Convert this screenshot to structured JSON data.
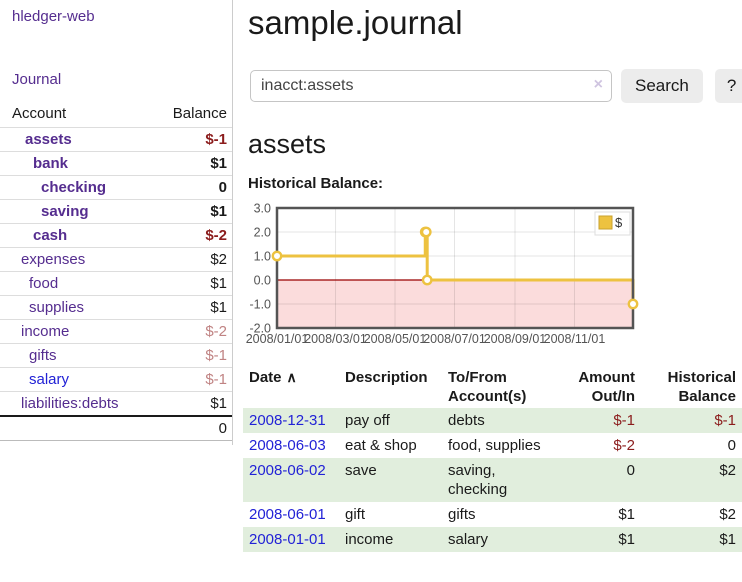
{
  "sidebar": {
    "brand": "hledger-web",
    "journal_link": "Journal",
    "accounts": {
      "headers": {
        "account": "Account",
        "balance": "Balance"
      },
      "rows": [
        {
          "name": "assets",
          "depth": 0,
          "bold": true,
          "balance": "$-1",
          "neg": "strong",
          "link_color": "purple"
        },
        {
          "name": "bank",
          "depth": 1,
          "bold": true,
          "balance": "$1",
          "neg": "",
          "link_color": "purple"
        },
        {
          "name": "checking",
          "depth": 2,
          "bold": true,
          "balance": "0",
          "neg": "",
          "link_color": "purple"
        },
        {
          "name": "saving",
          "depth": 2,
          "bold": true,
          "balance": "$1",
          "neg": "",
          "link_color": "purple"
        },
        {
          "name": "cash",
          "depth": 1,
          "bold": true,
          "balance": "$-2",
          "neg": "strong",
          "link_color": "purple"
        },
        {
          "name": "expenses",
          "depth": 0,
          "bold": false,
          "balance": "$2",
          "neg": "",
          "link_color": "purple"
        },
        {
          "name": "food",
          "depth": 1,
          "bold": false,
          "balance": "$1",
          "neg": "",
          "link_color": "purple"
        },
        {
          "name": "supplies",
          "depth": 1,
          "bold": false,
          "balance": "$1",
          "neg": "",
          "link_color": "purple"
        },
        {
          "name": "income",
          "depth": 0,
          "bold": false,
          "balance": "$-2",
          "neg": "soft",
          "link_color": "purple"
        },
        {
          "name": "gifts",
          "depth": 1,
          "bold": false,
          "balance": "$-1",
          "neg": "soft",
          "link_color": "purple"
        },
        {
          "name": "salary",
          "depth": 1,
          "bold": false,
          "balance": "$-1",
          "neg": "soft",
          "link_color": "blue"
        },
        {
          "name": "liabilities:debts",
          "depth": 0,
          "bold": false,
          "balance": "$1",
          "neg": "",
          "link_color": "purple"
        }
      ],
      "total": "0"
    }
  },
  "main": {
    "title": "sample.journal",
    "search": {
      "value": "inacct:assets",
      "clear_label": "×",
      "button_label": "Search",
      "help_label": "?"
    },
    "heading": "assets",
    "chart_title": "Historical Balance:"
  },
  "chart_data": {
    "type": "line",
    "step": true,
    "title": "Historical Balance",
    "series": [
      {
        "name": "$",
        "color": "#edc240",
        "points": [
          {
            "date": "2008-01-01",
            "day": 0,
            "value": 1
          },
          {
            "date": "2008-06-01",
            "day": 152,
            "value": 2
          },
          {
            "date": "2008-06-02",
            "day": 153,
            "value": 2
          },
          {
            "date": "2008-06-03",
            "day": 154,
            "value": 0
          },
          {
            "date": "2008-12-31",
            "day": 365,
            "value": -1
          }
        ]
      }
    ],
    "xlim_days": [
      0,
      365
    ],
    "ylim": [
      -2,
      3
    ],
    "yticks": [
      "3.0",
      "2.0",
      "1.0",
      "0.0",
      "-1.0",
      "-2.0"
    ],
    "ytick_values": [
      3,
      2,
      1,
      0,
      -1,
      -2
    ],
    "xticks": [
      {
        "label": "2008/01/01",
        "day": 0
      },
      {
        "label": "2008/03/01",
        "day": 60
      },
      {
        "label": "2008/05/01",
        "day": 121
      },
      {
        "label": "2008/07/01",
        "day": 182
      },
      {
        "label": "2008/09/01",
        "day": 244
      },
      {
        "label": "2008/11/01",
        "day": 305
      }
    ],
    "legend": {
      "label": "$",
      "position": "top-right"
    },
    "colors": {
      "line": "#edc240",
      "marker_fill": "#ffffff",
      "negative_region": "#fbdcdc",
      "zero_line": "#990000",
      "grid": "rgba(0,0,0,0.10)",
      "border": "#545454",
      "tick_text": "#545454"
    }
  },
  "register": {
    "headers": {
      "date": "Date",
      "sort_icon": "∧",
      "description": "Description",
      "accounts": "To/From Account(s)",
      "amount": "Amount Out/In",
      "balance": "Historical Balance"
    },
    "rows": [
      {
        "date": "2008-12-31",
        "description": "pay off",
        "accounts": "debts",
        "amount": "$-1",
        "amount_neg": true,
        "balance": "$-1",
        "balance_neg": true
      },
      {
        "date": "2008-06-03",
        "description": "eat & shop",
        "accounts": "food, supplies",
        "amount": "$-2",
        "amount_neg": true,
        "balance": "0",
        "balance_neg": false
      },
      {
        "date": "2008-06-02",
        "description": "save",
        "accounts": "saving, checking",
        "amount": "0",
        "amount_neg": false,
        "balance": "$2",
        "balance_neg": false
      },
      {
        "date": "2008-06-01",
        "description": "gift",
        "accounts": "gifts",
        "amount": "$1",
        "amount_neg": false,
        "balance": "$2",
        "balance_neg": false
      },
      {
        "date": "2008-01-01",
        "description": "income",
        "accounts": "salary",
        "amount": "$1",
        "amount_neg": false,
        "balance": "$1",
        "balance_neg": false
      }
    ]
  },
  "colors": {
    "link_purple": "#552d8f",
    "link_blue": "#2222d6",
    "negative_strong": "#8b1c1c",
    "negative_soft": "#c08383",
    "row_stripe_green": "#e1eedd",
    "button_bg": "#ececec"
  }
}
